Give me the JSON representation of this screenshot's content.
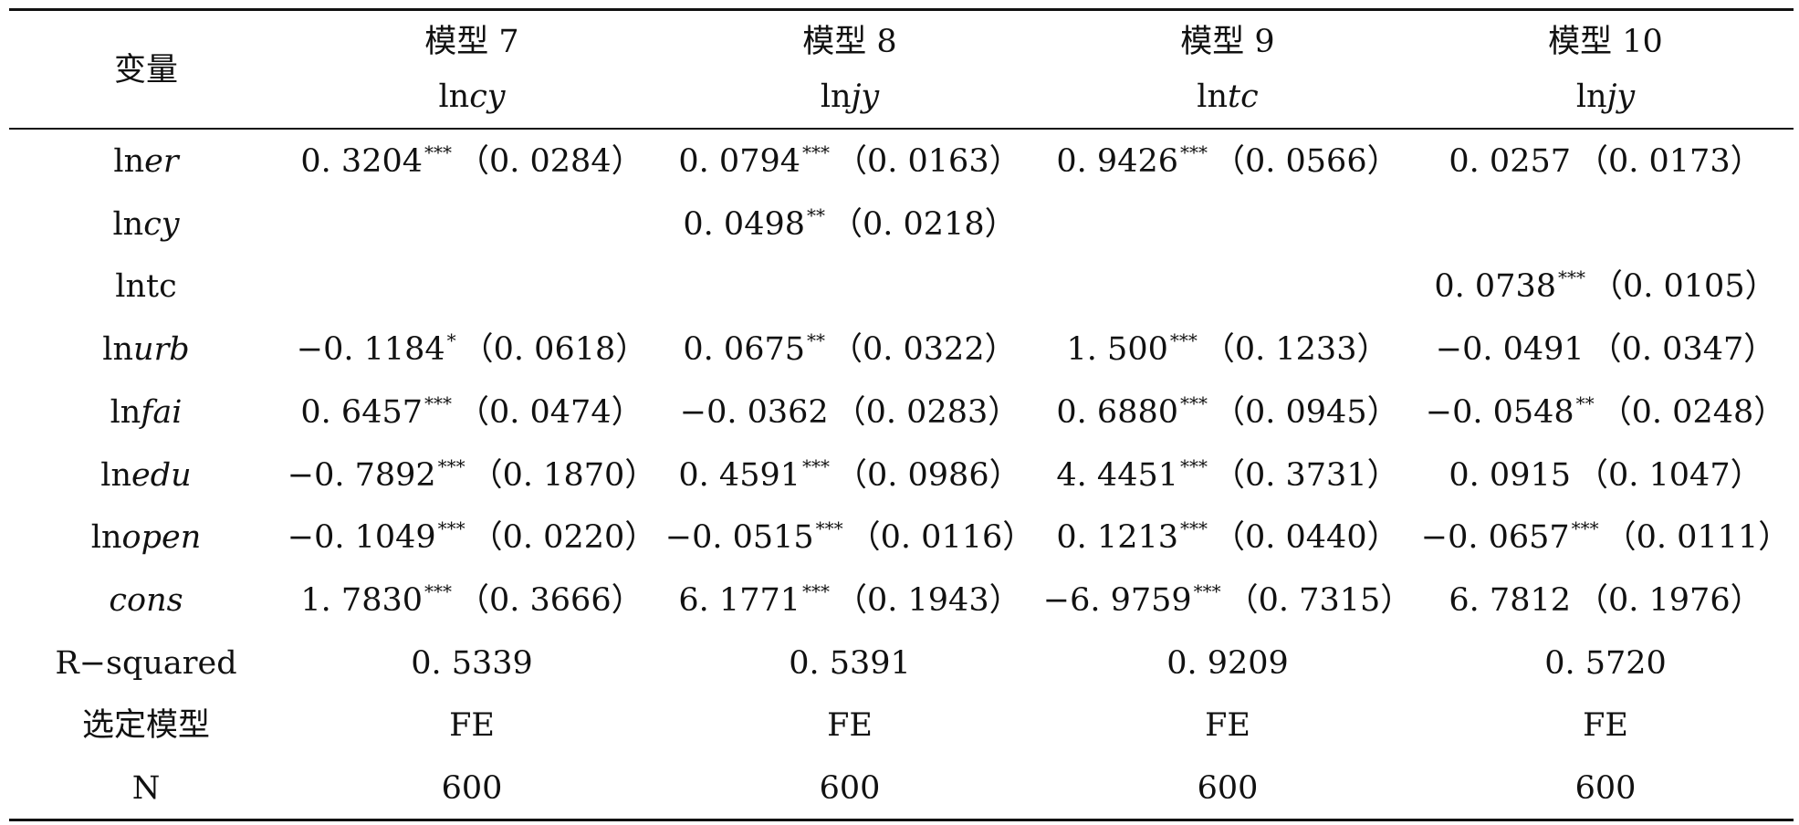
{
  "header": {
    "variable_label": "变量",
    "columns": [
      {
        "model": "模型 7",
        "dep_prefix": "ln",
        "dep_var": "cy"
      },
      {
        "model": "模型 8",
        "dep_prefix": "ln",
        "dep_var": "jy"
      },
      {
        "model": "模型 9",
        "dep_prefix": "ln",
        "dep_var": "tc"
      },
      {
        "model": "模型 10",
        "dep_prefix": "ln",
        "dep_var": "jy"
      }
    ]
  },
  "rows": [
    {
      "prefix": "ln",
      "var": "er",
      "italic": true,
      "cells": [
        {
          "coef": "0. 3204",
          "stars": "***",
          "se": "（0. 0284）"
        },
        {
          "coef": "0. 0794",
          "stars": "***",
          "se": "（0. 0163）"
        },
        {
          "coef": "0. 9426",
          "stars": "***",
          "se": "（0. 0566）"
        },
        {
          "coef": "0. 0257",
          "stars": "",
          "se": "（0. 0173）"
        }
      ]
    },
    {
      "prefix": "ln",
      "var": "cy",
      "italic": true,
      "cells": [
        null,
        {
          "coef": "0. 0498",
          "stars": "**",
          "se": "（0. 0218）"
        },
        null,
        null
      ]
    },
    {
      "prefix": "ln",
      "var": "tc",
      "italic": false,
      "cells": [
        null,
        null,
        null,
        {
          "coef": "0. 0738",
          "stars": "***",
          "se": "（0. 0105）"
        }
      ]
    },
    {
      "prefix": "ln",
      "var": "urb",
      "italic": true,
      "cells": [
        {
          "coef": "−0. 1184",
          "stars": "*",
          "se": "（0. 0618）"
        },
        {
          "coef": "0. 0675",
          "stars": "**",
          "se": "（0. 0322）"
        },
        {
          "coef": "1. 500",
          "stars": "***",
          "se": "（0. 1233）"
        },
        {
          "coef": "−0. 0491",
          "stars": "",
          "se": "（0. 0347）"
        }
      ]
    },
    {
      "prefix": "ln",
      "var": "fai",
      "italic": true,
      "cells": [
        {
          "coef": "0. 6457",
          "stars": "***",
          "se": "（0. 0474）"
        },
        {
          "coef": "−0. 0362",
          "stars": "",
          "se": "（0. 0283）"
        },
        {
          "coef": "0. 6880",
          "stars": "***",
          "se": "（0. 0945）"
        },
        {
          "coef": "−0. 0548",
          "stars": "**",
          "se": "（0. 0248）"
        }
      ]
    },
    {
      "prefix": "ln",
      "var": "edu",
      "italic": true,
      "cells": [
        {
          "coef": "−0. 7892",
          "stars": "***",
          "se": "（0. 1870）"
        },
        {
          "coef": "0. 4591",
          "stars": "***",
          "se": "（0. 0986）"
        },
        {
          "coef": "4. 4451",
          "stars": "***",
          "se": "（0. 3731）"
        },
        {
          "coef": "0. 0915",
          "stars": "",
          "se": "（0. 1047）"
        }
      ]
    },
    {
      "prefix": "ln",
      "var": "open",
      "italic": true,
      "cells": [
        {
          "coef": "−0. 1049",
          "stars": "***",
          "se": "（0. 0220）"
        },
        {
          "coef": "−0. 0515",
          "stars": "***",
          "se": "（0. 0116）"
        },
        {
          "coef": "0. 1213",
          "stars": "***",
          "se": "（0. 0440）"
        },
        {
          "coef": "−0. 0657",
          "stars": "***",
          "se": "（0. 0111）"
        }
      ]
    },
    {
      "prefix": "",
      "var": "cons",
      "italic": true,
      "cells": [
        {
          "coef": "1. 7830",
          "stars": "***",
          "se": "（0. 3666）"
        },
        {
          "coef": "6. 1771",
          "stars": "***",
          "se": "（0. 1943）"
        },
        {
          "coef": "−6. 9759",
          "stars": "***",
          "se": "（0. 7315）"
        },
        {
          "coef": "6. 7812",
          "stars": "",
          "se": "（0. 1976）"
        }
      ]
    },
    {
      "prefix": "R−squared",
      "var": "",
      "italic": false,
      "cells": [
        {
          "coef": "0. 5339",
          "stars": "",
          "se": ""
        },
        {
          "coef": "0. 5391",
          "stars": "",
          "se": ""
        },
        {
          "coef": "0. 9209",
          "stars": "",
          "se": ""
        },
        {
          "coef": "0. 5720",
          "stars": "",
          "se": ""
        }
      ]
    },
    {
      "prefix": "选定模型",
      "var": "",
      "italic": false,
      "cells": [
        {
          "coef": "FE",
          "stars": "",
          "se": ""
        },
        {
          "coef": "FE",
          "stars": "",
          "se": ""
        },
        {
          "coef": "FE",
          "stars": "",
          "se": ""
        },
        {
          "coef": "FE",
          "stars": "",
          "se": ""
        }
      ]
    },
    {
      "prefix": "N",
      "var": "",
      "italic": false,
      "cells": [
        {
          "coef": "600",
          "stars": "",
          "se": ""
        },
        {
          "coef": "600",
          "stars": "",
          "se": ""
        },
        {
          "coef": "600",
          "stars": "",
          "se": ""
        },
        {
          "coef": "600",
          "stars": "",
          "se": ""
        }
      ]
    }
  ]
}
